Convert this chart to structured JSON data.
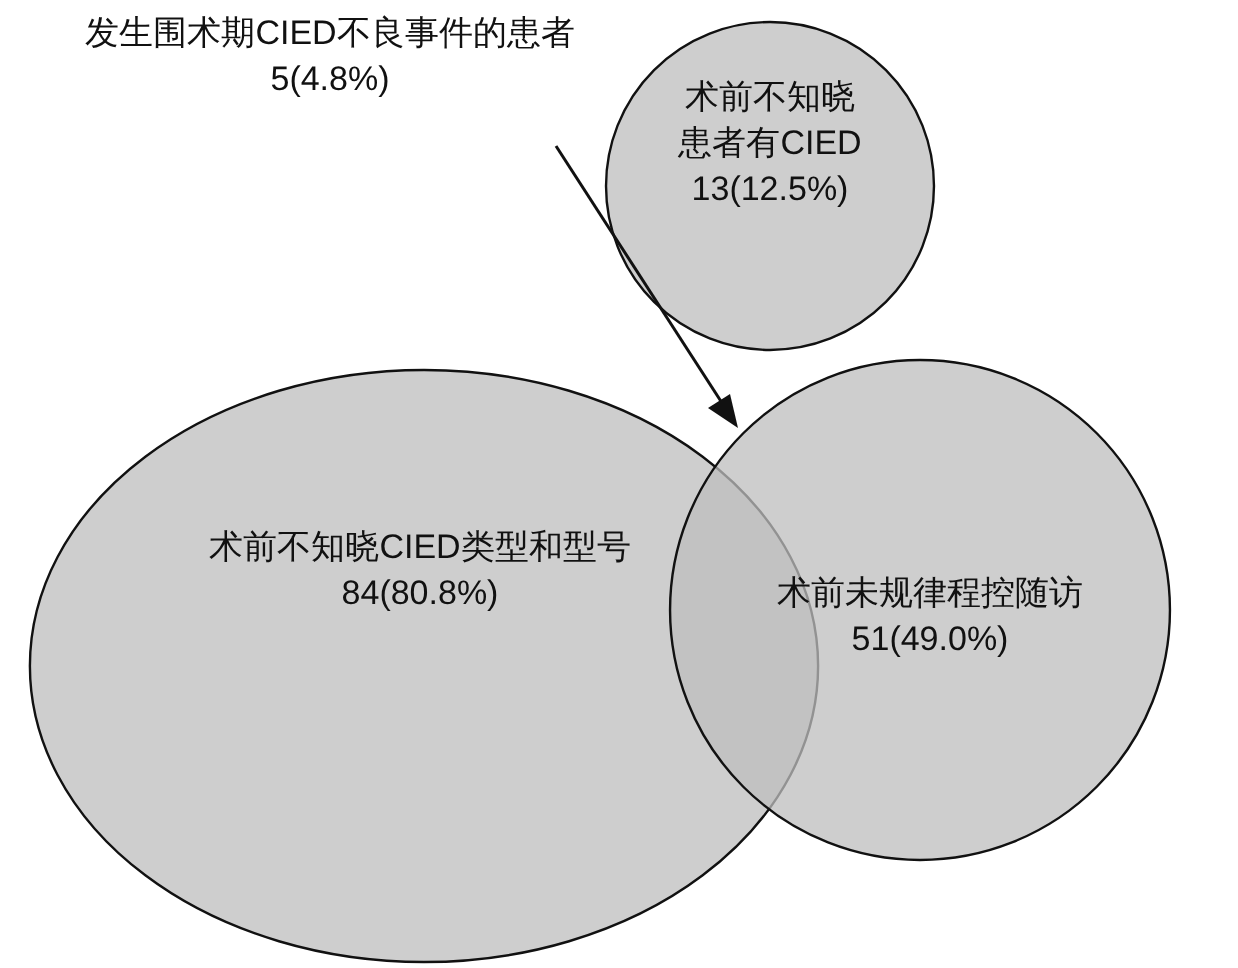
{
  "chart_data": {
    "type": "other",
    "categories": [
      "术前不知晓CIED类型和型号",
      "术前不知晓患者有CIED",
      "术前未规律程控随访"
    ],
    "values": [
      84,
      13,
      51
    ],
    "value_labels": [
      "84(80.8%)",
      "13(12.5%)",
      "51(49.0%)"
    ],
    "colors": [
      "#bdbdbd",
      "#bdbdbd",
      "#bdbdbd"
    ],
    "annotations": [
      "发生围术期CIED不良事件的患者\n5(4.8%)"
    ]
  }
}
